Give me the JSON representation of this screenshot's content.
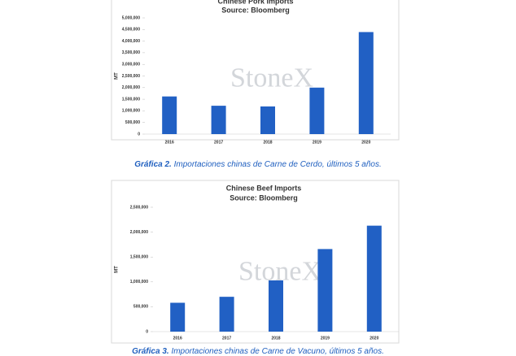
{
  "chart_data": [
    {
      "type": "bar",
      "title": "Chinese Pork Imports",
      "subtitle": "Source: Bloomberg",
      "y_label": "MT",
      "watermark": "StoneX",
      "categories": [
        "2016",
        "2017",
        "2018",
        "2019",
        "2020"
      ],
      "values": [
        1620000,
        1220000,
        1190000,
        2000000,
        4390000
      ],
      "color": "#2160c4",
      "ylim": [
        0,
        5000000
      ],
      "yticks": [
        0,
        {
          "value": 500000,
          "label": "500,000"
        },
        {
          "value": 1000000,
          "label": "1,000,000"
        },
        {
          "value": 1500000,
          "label": "1,500,000"
        },
        {
          "value": 2000000,
          "label": "2,000,000"
        },
        {
          "value": 2500000,
          "label": "2,500,000"
        },
        {
          "value": 3000000,
          "label": "3,000,000"
        },
        {
          "value": 3500000,
          "label": "3,500,000"
        },
        {
          "value": 4000000,
          "label": "4,000,000"
        },
        {
          "value": 4500000,
          "label": "4,500,000"
        },
        {
          "value": 5000000,
          "label": "5,000,000"
        }
      ],
      "grid": false
    },
    {
      "type": "bar",
      "title": "Chinese Beef Imports",
      "subtitle": "Source: Bloomberg",
      "y_label": "MT",
      "watermark": "StoneX",
      "categories": [
        "2016",
        "2017",
        "2018",
        "2019",
        "2020"
      ],
      "values": [
        580000,
        700000,
        1030000,
        1660000,
        2130000
      ],
      "color": "#2160c4",
      "ylim": [
        0,
        2500000
      ],
      "yticks": [
        0,
        {
          "value": 500000,
          "label": "500,000"
        },
        {
          "value": 1000000,
          "label": "1,000,000"
        },
        {
          "value": 1500000,
          "label": "1,500,000"
        },
        {
          "value": 2000000,
          "label": "2,000,000"
        },
        {
          "value": 2500000,
          "label": "2,500,000"
        }
      ],
      "grid": false
    }
  ],
  "captions": [
    {
      "label": "Gráfica 2.",
      "text": "Importaciones chinas de Carne de Cerdo, últimos 5 años."
    },
    {
      "label": "Gráfica 3.",
      "text": "Importaciones chinas de Carne de Vacuno, últimos 5 años."
    }
  ]
}
